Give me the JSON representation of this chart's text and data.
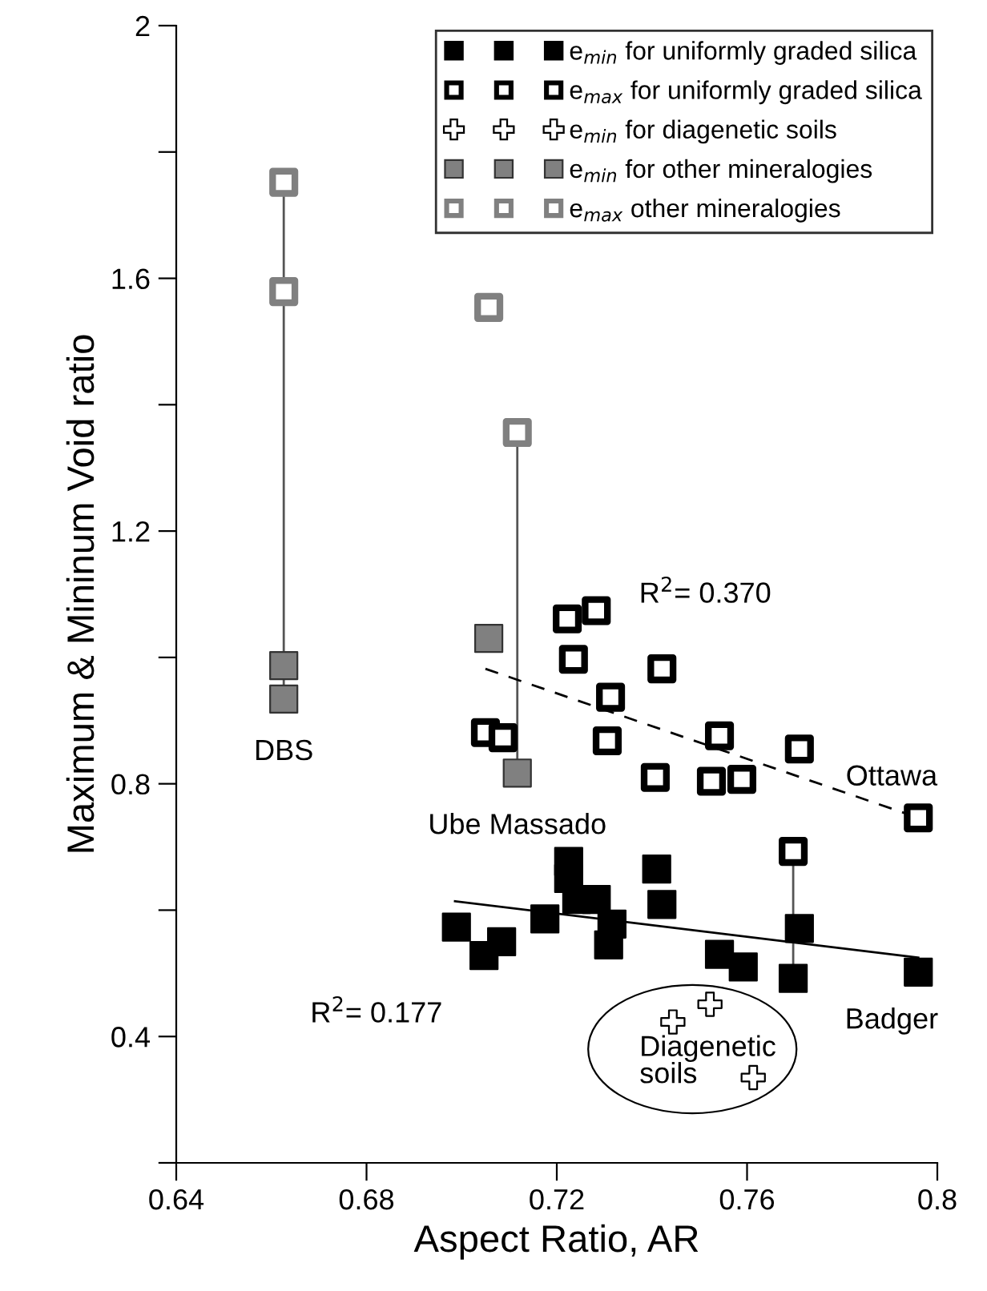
{
  "chart_data": {
    "type": "scatter",
    "xlabel": "Aspect Ratio, AR",
    "ylabel": "Maximum & Mininum Void ratio",
    "xlim": [
      0.64,
      0.8
    ],
    "xticks": [
      0.64,
      0.68,
      0.72,
      0.76,
      0.8
    ],
    "ylim": [
      0.2,
      2
    ],
    "yticks": [
      {
        "value": 0.2,
        "label": null
      },
      0.4,
      {
        "value": 0.6,
        "label": null
      },
      0.8,
      {
        "value": 1.0,
        "label": null
      },
      1.2,
      {
        "value": 1.4,
        "label": null
      },
      1.6,
      {
        "value": 1.8,
        "label": null
      },
      2
    ],
    "grid": false,
    "legend": "top right",
    "series": [
      {
        "type": "line",
        "color": "#555555",
        "marker": "none",
        "line_style": "solid",
        "x": [
          0.6626,
          0.6626
        ],
        "values": [
          1.752,
          0.934
        ]
      },
      {
        "type": "line",
        "color": "#555555",
        "marker": "none",
        "line_style": "solid",
        "x": [
          0.7117,
          0.7117
        ],
        "values": [
          1.356,
          0.817
        ]
      },
      {
        "type": "line",
        "color": "#555555",
        "marker": "none",
        "line_style": "solid",
        "x": [
          0.7697,
          0.7697
        ],
        "values": [
          0.693,
          0.492
        ]
      },
      {
        "type": "line",
        "color": "#000000",
        "marker": "none",
        "line_style": "solid",
        "x": [
          0.6986,
          0.796
        ],
        "values": [
          0.614,
          0.525
        ]
      },
      {
        "type": "line",
        "color": "#000000",
        "marker": "none",
        "line_style": "dashed",
        "x": [
          0.705,
          0.7949
        ],
        "values": [
          0.982,
          0.749
        ]
      },
      {
        "name": "e$_{min}$ for uniformly graded silica",
        "marker": "square",
        "color": "#000000",
        "x": [
          0.6989,
          0.7047,
          0.7084,
          0.7175,
          0.7225,
          0.7225,
          0.7242,
          0.7283,
          0.7316,
          0.7309,
          0.741,
          0.7421,
          0.7542,
          0.7592,
          0.771,
          0.7697,
          0.796
        ],
        "values": [
          0.573,
          0.528,
          0.55,
          0.586,
          0.677,
          0.65,
          0.617,
          0.617,
          0.578,
          0.545,
          0.665,
          0.609,
          0.53,
          0.51,
          0.571,
          0.492,
          0.502
        ]
      },
      {
        "name": "e$_{max}$ for uniformly graded silica",
        "marker": "square",
        "color": "#000000",
        "x": [
          0.7222,
          0.7283,
          0.7235,
          0.705,
          0.7087,
          0.7313,
          0.7306,
          0.7421,
          0.7407,
          0.7525,
          0.7589,
          0.7542,
          0.771,
          0.796,
          0.7697
        ],
        "values": [
          1.061,
          1.074,
          0.997,
          0.881,
          0.873,
          0.937,
          0.868,
          0.982,
          0.81,
          0.804,
          0.807,
          0.876,
          0.855,
          0.746,
          0.693
        ]
      },
      {
        "name": "e$_{min}$ for diagenetic soils",
        "marker": "cross",
        "color": "#000000",
        "x": [
          0.7444,
          0.7522,
          0.7613
        ],
        "values": [
          0.423,
          0.451,
          0.335
        ]
      },
      {
        "name": "e$_{min}$ for other mineralogies",
        "marker": "square",
        "color": "#808080",
        "x": [
          0.6626,
          0.6626,
          0.7057,
          0.7117
        ],
        "values": [
          0.987,
          0.934,
          1.03,
          0.817
        ]
      },
      {
        "name": "e$_{max}$ other mineralogies",
        "marker": "square",
        "color": "#808080",
        "x": [
          0.6626,
          0.6626,
          0.7057,
          0.7117
        ],
        "values": [
          1.752,
          1.579,
          1.554,
          1.356
        ]
      }
    ],
    "annotations": [
      {
        "text": "DBS",
        "x": 0.6626,
        "y": 0.934
      },
      {
        "text": "Ube Massado",
        "x": 0.7117,
        "y": 0.817
      },
      {
        "text": "Ottawa",
        "x": 0.796,
        "y": 0.746
      },
      {
        "text": "Badger",
        "x": 0.796,
        "y": 0.502
      },
      {
        "text": "Diagenetic\nsoils",
        "x": 0.7444,
        "y": 0.423
      },
      "R$^{2}$= 0.370",
      "R$^{2}$= 0.177"
    ]
  }
}
